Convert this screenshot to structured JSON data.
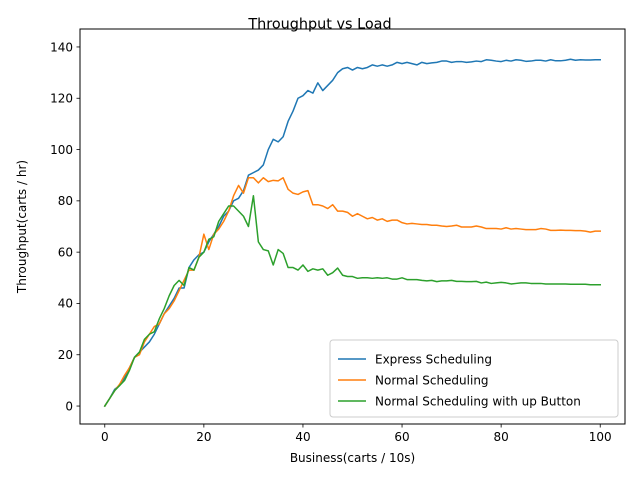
{
  "chart_data": {
    "type": "line",
    "title": "Throughput vs Load",
    "xlabel": "Business(carts / 10s)",
    "ylabel": "Throughput(carts / hr)",
    "xlim": [
      -5,
      105
    ],
    "ylim": [
      -7,
      147
    ],
    "xticks": [
      0,
      20,
      40,
      60,
      80,
      100
    ],
    "yticks": [
      0,
      20,
      40,
      60,
      80,
      100,
      120,
      140
    ],
    "grid": false,
    "legend": "lower right",
    "series": [
      {
        "name": "Express Scheduling",
        "color": "#1f77b4",
        "points": [
          [
            0,
            0
          ],
          [
            1,
            3
          ],
          [
            2,
            6.5
          ],
          [
            3,
            8
          ],
          [
            4,
            11
          ],
          [
            5,
            15
          ],
          [
            6,
            19
          ],
          [
            7,
            21
          ],
          [
            8,
            23
          ],
          [
            9,
            25
          ],
          [
            10,
            28
          ],
          [
            11,
            32
          ],
          [
            12,
            36
          ],
          [
            13,
            39
          ],
          [
            14,
            42
          ],
          [
            15,
            46
          ],
          [
            16,
            46
          ],
          [
            17,
            54
          ],
          [
            18,
            57
          ],
          [
            19,
            59
          ],
          [
            20,
            60
          ],
          [
            21,
            64
          ],
          [
            22,
            67
          ],
          [
            23,
            70
          ],
          [
            24,
            74
          ],
          [
            25,
            76
          ],
          [
            26,
            80
          ],
          [
            27,
            81
          ],
          [
            28,
            84
          ],
          [
            29,
            90
          ],
          [
            30,
            91
          ],
          [
            31,
            92
          ],
          [
            32,
            94
          ],
          [
            33,
            100
          ],
          [
            34,
            104
          ],
          [
            35,
            103
          ],
          [
            36,
            105
          ],
          [
            37,
            111
          ],
          [
            38,
            115
          ],
          [
            39,
            120
          ],
          [
            40,
            121
          ],
          [
            41,
            123
          ],
          [
            42,
            122
          ],
          [
            43,
            126
          ],
          [
            44,
            123
          ],
          [
            45,
            125
          ],
          [
            46,
            127
          ],
          [
            47,
            130
          ],
          [
            48,
            131.5
          ],
          [
            49,
            132
          ],
          [
            50,
            131
          ],
          [
            51,
            132
          ],
          [
            52,
            131.5
          ],
          [
            53,
            132
          ],
          [
            54,
            133
          ],
          [
            55,
            132.5
          ],
          [
            56,
            133
          ],
          [
            57,
            132.5
          ],
          [
            58,
            133
          ],
          [
            59,
            134
          ],
          [
            60,
            133.5
          ],
          [
            61,
            134
          ],
          [
            62,
            133.5
          ],
          [
            63,
            133
          ],
          [
            64,
            134
          ],
          [
            65,
            133.5
          ],
          [
            66,
            133.8
          ],
          [
            67,
            134
          ],
          [
            68,
            134.5
          ],
          [
            69,
            134.5
          ],
          [
            70,
            134
          ],
          [
            71,
            134.3
          ],
          [
            72,
            134.3
          ],
          [
            73,
            134
          ],
          [
            74,
            134.2
          ],
          [
            75,
            134.5
          ],
          [
            76,
            134.3
          ],
          [
            77,
            135
          ],
          [
            78,
            134.8
          ],
          [
            79,
            134.5
          ],
          [
            80,
            134.3
          ],
          [
            81,
            134.8
          ],
          [
            82,
            134.5
          ],
          [
            83,
            135
          ],
          [
            84,
            134.8
          ],
          [
            85,
            134.4
          ],
          [
            86,
            134.5
          ],
          [
            87,
            134.8
          ],
          [
            88,
            134.8
          ],
          [
            89,
            134.5
          ],
          [
            90,
            135
          ],
          [
            91,
            134.6
          ],
          [
            92,
            134.6
          ],
          [
            93,
            134.8
          ],
          [
            94,
            135.2
          ],
          [
            95,
            134.8
          ],
          [
            96,
            135
          ],
          [
            97,
            134.9
          ],
          [
            98,
            134.9
          ],
          [
            99,
            135
          ],
          [
            100,
            135
          ]
        ]
      },
      {
        "name": "Normal Scheduling",
        "color": "#ff7f0e",
        "points": [
          [
            0,
            0
          ],
          [
            1,
            3
          ],
          [
            2,
            6
          ],
          [
            3,
            8.5
          ],
          [
            4,
            12
          ],
          [
            5,
            15
          ],
          [
            6,
            19
          ],
          [
            7,
            20
          ],
          [
            8,
            25
          ],
          [
            9,
            28
          ],
          [
            10,
            31
          ],
          [
            11,
            32
          ],
          [
            12,
            36
          ],
          [
            13,
            38
          ],
          [
            14,
            41
          ],
          [
            15,
            45
          ],
          [
            16,
            49
          ],
          [
            17,
            53
          ],
          [
            18,
            53
          ],
          [
            19,
            58
          ],
          [
            20,
            67
          ],
          [
            21,
            61
          ],
          [
            22,
            67
          ],
          [
            23,
            69
          ],
          [
            24,
            72
          ],
          [
            25,
            76
          ],
          [
            26,
            82
          ],
          [
            27,
            86
          ],
          [
            28,
            83
          ],
          [
            29,
            89
          ],
          [
            30,
            89
          ],
          [
            31,
            87
          ],
          [
            32,
            89
          ],
          [
            33,
            87.5
          ],
          [
            34,
            88
          ],
          [
            35,
            87.8
          ],
          [
            36,
            89
          ],
          [
            37,
            84.5
          ],
          [
            38,
            83
          ],
          [
            39,
            82.5
          ],
          [
            40,
            83.5
          ],
          [
            41,
            84
          ],
          [
            42,
            78.5
          ],
          [
            43,
            78.5
          ],
          [
            44,
            78
          ],
          [
            45,
            77
          ],
          [
            46,
            78.5
          ],
          [
            47,
            76
          ],
          [
            48,
            76
          ],
          [
            49,
            75.5
          ],
          [
            50,
            74
          ],
          [
            51,
            75
          ],
          [
            52,
            74
          ],
          [
            53,
            73
          ],
          [
            54,
            73.5
          ],
          [
            55,
            72.5
          ],
          [
            56,
            73
          ],
          [
            57,
            72
          ],
          [
            58,
            72.5
          ],
          [
            59,
            72.5
          ],
          [
            60,
            71.5
          ],
          [
            61,
            71
          ],
          [
            62,
            71.2
          ],
          [
            63,
            71
          ],
          [
            64,
            70.8
          ],
          [
            65,
            70.8
          ],
          [
            66,
            70.5
          ],
          [
            67,
            70.5
          ],
          [
            68,
            70.2
          ],
          [
            69,
            70
          ],
          [
            70,
            70.2
          ],
          [
            71,
            70.5
          ],
          [
            72,
            69.8
          ],
          [
            73,
            69.8
          ],
          [
            74,
            69.8
          ],
          [
            75,
            70.2
          ],
          [
            76,
            69.8
          ],
          [
            77,
            69.2
          ],
          [
            78,
            69.2
          ],
          [
            79,
            69.2
          ],
          [
            80,
            69
          ],
          [
            81,
            69.5
          ],
          [
            82,
            69
          ],
          [
            83,
            69.2
          ],
          [
            84,
            69
          ],
          [
            85,
            68.8
          ],
          [
            86,
            68.8
          ],
          [
            87,
            68.8
          ],
          [
            88,
            69.2
          ],
          [
            89,
            69
          ],
          [
            90,
            68.5
          ],
          [
            91,
            68.5
          ],
          [
            92,
            68.6
          ],
          [
            93,
            68.5
          ],
          [
            94,
            68.5
          ],
          [
            95,
            68.4
          ],
          [
            96,
            68.4
          ],
          [
            97,
            68.2
          ],
          [
            98,
            67.8
          ],
          [
            99,
            68.2
          ],
          [
            100,
            68.2
          ]
        ]
      },
      {
        "name": "Normal Scheduling with up Button",
        "color": "#2ca02c",
        "points": [
          [
            0,
            0
          ],
          [
            1,
            3
          ],
          [
            2,
            6
          ],
          [
            3,
            8
          ],
          [
            4,
            10
          ],
          [
            5,
            14
          ],
          [
            6,
            19
          ],
          [
            7,
            21
          ],
          [
            8,
            26
          ],
          [
            9,
            28
          ],
          [
            10,
            29
          ],
          [
            11,
            34
          ],
          [
            12,
            38
          ],
          [
            13,
            43
          ],
          [
            14,
            47
          ],
          [
            15,
            49
          ],
          [
            16,
            47
          ],
          [
            17,
            54
          ],
          [
            18,
            53
          ],
          [
            19,
            58
          ],
          [
            20,
            60
          ],
          [
            21,
            65
          ],
          [
            22,
            66
          ],
          [
            23,
            72
          ],
          [
            24,
            75
          ],
          [
            25,
            78
          ],
          [
            26,
            78
          ],
          [
            27,
            76
          ],
          [
            28,
            74
          ],
          [
            29,
            70
          ],
          [
            30,
            82
          ],
          [
            31,
            64
          ],
          [
            32,
            61
          ],
          [
            33,
            60.5
          ],
          [
            34,
            55
          ],
          [
            35,
            61
          ],
          [
            36,
            59.5
          ],
          [
            37,
            54
          ],
          [
            38,
            54
          ],
          [
            39,
            53
          ],
          [
            40,
            55
          ],
          [
            41,
            52.5
          ],
          [
            42,
            53.5
          ],
          [
            43,
            53
          ],
          [
            44,
            53.5
          ],
          [
            45,
            51
          ],
          [
            46,
            52
          ],
          [
            47,
            53.8
          ],
          [
            48,
            51
          ],
          [
            49,
            50.5
          ],
          [
            50,
            50.5
          ],
          [
            51,
            49.8
          ],
          [
            52,
            50
          ],
          [
            53,
            50
          ],
          [
            54,
            49.8
          ],
          [
            55,
            50
          ],
          [
            56,
            49.8
          ],
          [
            57,
            50
          ],
          [
            58,
            49.5
          ],
          [
            59,
            49.5
          ],
          [
            60,
            50
          ],
          [
            61,
            49.3
          ],
          [
            62,
            49.3
          ],
          [
            63,
            49.3
          ],
          [
            64,
            49
          ],
          [
            65,
            48.8
          ],
          [
            66,
            49
          ],
          [
            67,
            48.5
          ],
          [
            68,
            48.8
          ],
          [
            69,
            48.8
          ],
          [
            70,
            49
          ],
          [
            71,
            48.6
          ],
          [
            72,
            48.6
          ],
          [
            73,
            48.5
          ],
          [
            74,
            48.5
          ],
          [
            75,
            48.6
          ],
          [
            76,
            48
          ],
          [
            77,
            48.3
          ],
          [
            78,
            47.8
          ],
          [
            79,
            48
          ],
          [
            80,
            48.2
          ],
          [
            81,
            48
          ],
          [
            82,
            47.6
          ],
          [
            83,
            47.8
          ],
          [
            84,
            48
          ],
          [
            85,
            48
          ],
          [
            86,
            47.8
          ],
          [
            87,
            47.8
          ],
          [
            88,
            47.8
          ],
          [
            89,
            47.6
          ],
          [
            90,
            47.6
          ],
          [
            91,
            47.6
          ],
          [
            92,
            47.6
          ],
          [
            93,
            47.6
          ],
          [
            94,
            47.5
          ],
          [
            95,
            47.5
          ],
          [
            96,
            47.5
          ],
          [
            97,
            47.5
          ],
          [
            98,
            47.3
          ],
          [
            99,
            47.3
          ],
          [
            100,
            47.3
          ]
        ]
      }
    ]
  }
}
